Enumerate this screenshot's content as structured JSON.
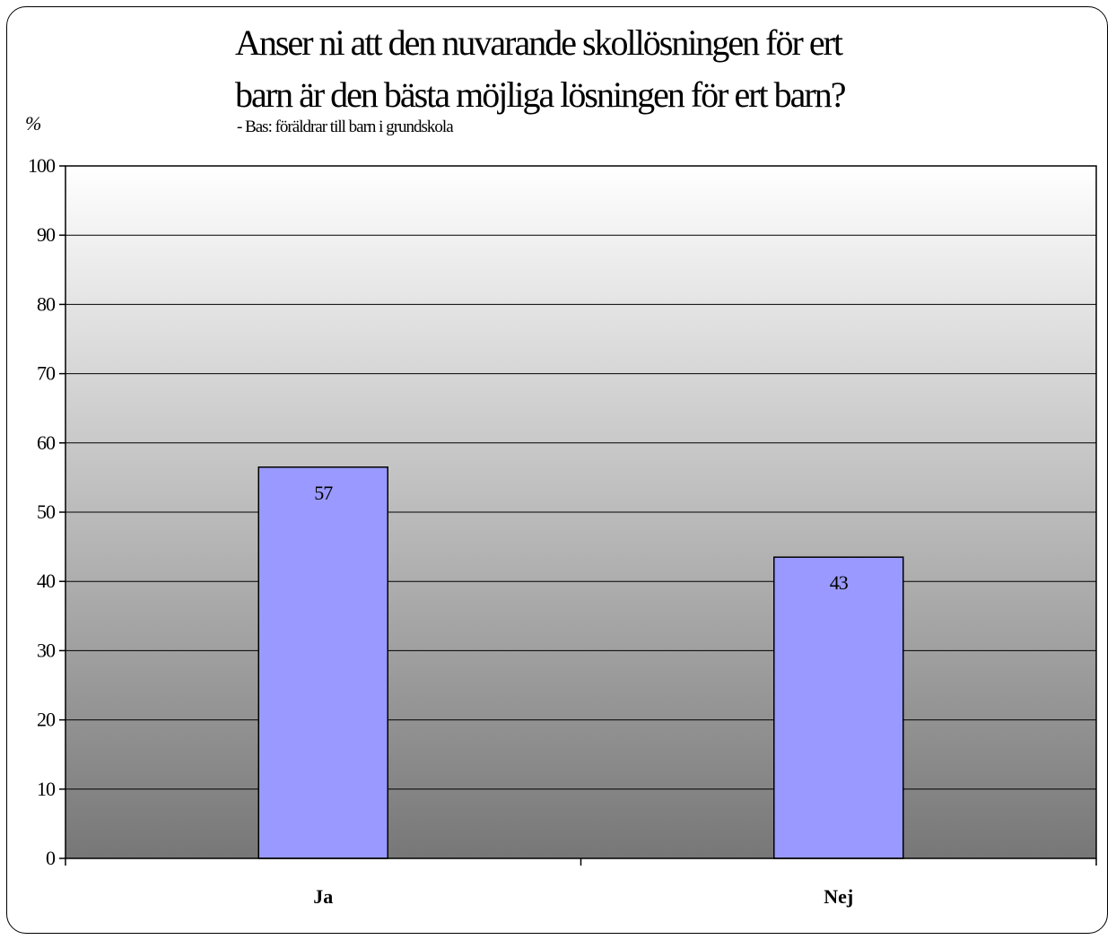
{
  "chart_data": {
    "type": "bar",
    "title_lines": [
      "Anser ni att den nuvarande skollösningen för ert",
      "barn är den bästa möjliga lösningen för ert barn?"
    ],
    "subtitle": "- Bas: föräldrar till barn i grundskola",
    "ylabel": "%",
    "xlabel": "",
    "categories": [
      "Ja",
      "Nej"
    ],
    "values": [
      56.5,
      43.5
    ],
    "data_labels": [
      "57",
      "43"
    ],
    "ylim": [
      0,
      100
    ],
    "yticks": [
      0,
      10,
      20,
      30,
      40,
      50,
      60,
      70,
      80,
      90,
      100
    ],
    "grid": true,
    "legend": "none",
    "colors": {
      "bar": "#9999ff",
      "bar_border": "#000000",
      "plot_bg_top": "#ffffff",
      "plot_bg_bottom": "#777777",
      "gridline": "#000000"
    }
  }
}
